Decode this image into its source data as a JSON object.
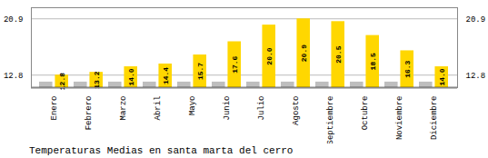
{
  "chart_data": {
    "type": "bar",
    "title": "Temperaturas Medias en santa marta del cerro",
    "categories": [
      "Enero",
      "Febrero",
      "Marzo",
      "Abril",
      "Mayo",
      "Junio",
      "Julio",
      "Agosto",
      "Septiembre",
      "Octubre",
      "Noviembre",
      "Diciembre"
    ],
    "series": [
      {
        "color": "#BEBEBE",
        "values": [
          11.8,
          11.8,
          11.8,
          11.8,
          11.8,
          11.8,
          11.8,
          11.8,
          11.8,
          11.8,
          11.8,
          11.8
        ]
      },
      {
        "color": "#FFD700",
        "values": [
          12.8,
          13.2,
          14.0,
          14.4,
          15.7,
          17.6,
          20.0,
          20.9,
          20.5,
          18.5,
          16.3,
          14.0
        ],
        "data_labels": true,
        "value_labels": [
          "12.8",
          "13.2",
          "14.0",
          "14.4",
          "15.7",
          "17.6",
          "20.0",
          "20.9",
          "20.5",
          "18.5",
          "16.3",
          "14.0"
        ]
      }
    ],
    "ylim": [
      11.0,
      22.5
    ],
    "yticks": [
      12.8,
      20.9
    ],
    "grid": true
  }
}
